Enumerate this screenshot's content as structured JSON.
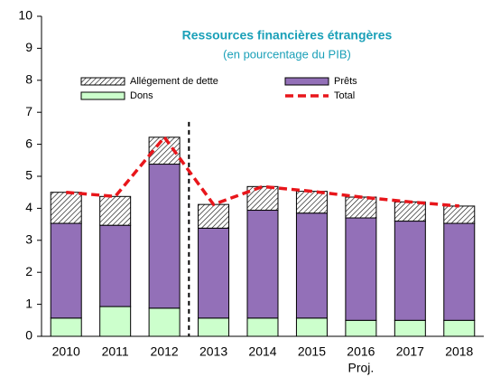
{
  "chart_data": {
    "type": "stacked_bar",
    "title": "Ressources financières étrangères",
    "subtitle": "(en pourcentage du PIB)",
    "categories": [
      "2010",
      "2011",
      "2012",
      "2013",
      "2014",
      "2015",
      "2016",
      "2017",
      "2018"
    ],
    "annotation": "Proj.",
    "series": [
      {
        "name": "Dons",
        "color": "#ccffcc",
        "values": [
          0.57,
          0.93,
          0.88,
          0.57,
          0.57,
          0.57,
          0.5,
          0.5,
          0.5
        ]
      },
      {
        "name": "Prêts",
        "color": "#9370b8",
        "values": [
          2.96,
          2.54,
          4.5,
          2.81,
          3.37,
          3.28,
          3.2,
          3.1,
          3.03
        ]
      },
      {
        "name": "Allégement de dette",
        "color": "#ffffff",
        "hatch": true,
        "values": [
          0.97,
          0.9,
          0.84,
          0.74,
          0.74,
          0.68,
          0.65,
          0.6,
          0.54
        ]
      },
      {
        "name": "Total",
        "color": "#e8161b",
        "line": true,
        "values": [
          4.5,
          4.37,
          6.22,
          4.12,
          4.68,
          4.53,
          4.35,
          4.2,
          4.07
        ]
      }
    ],
    "ylim": [
      0,
      10
    ],
    "yticks": [
      0,
      1,
      2,
      3,
      4,
      5,
      6,
      7,
      8,
      9,
      10
    ],
    "grid": false
  }
}
